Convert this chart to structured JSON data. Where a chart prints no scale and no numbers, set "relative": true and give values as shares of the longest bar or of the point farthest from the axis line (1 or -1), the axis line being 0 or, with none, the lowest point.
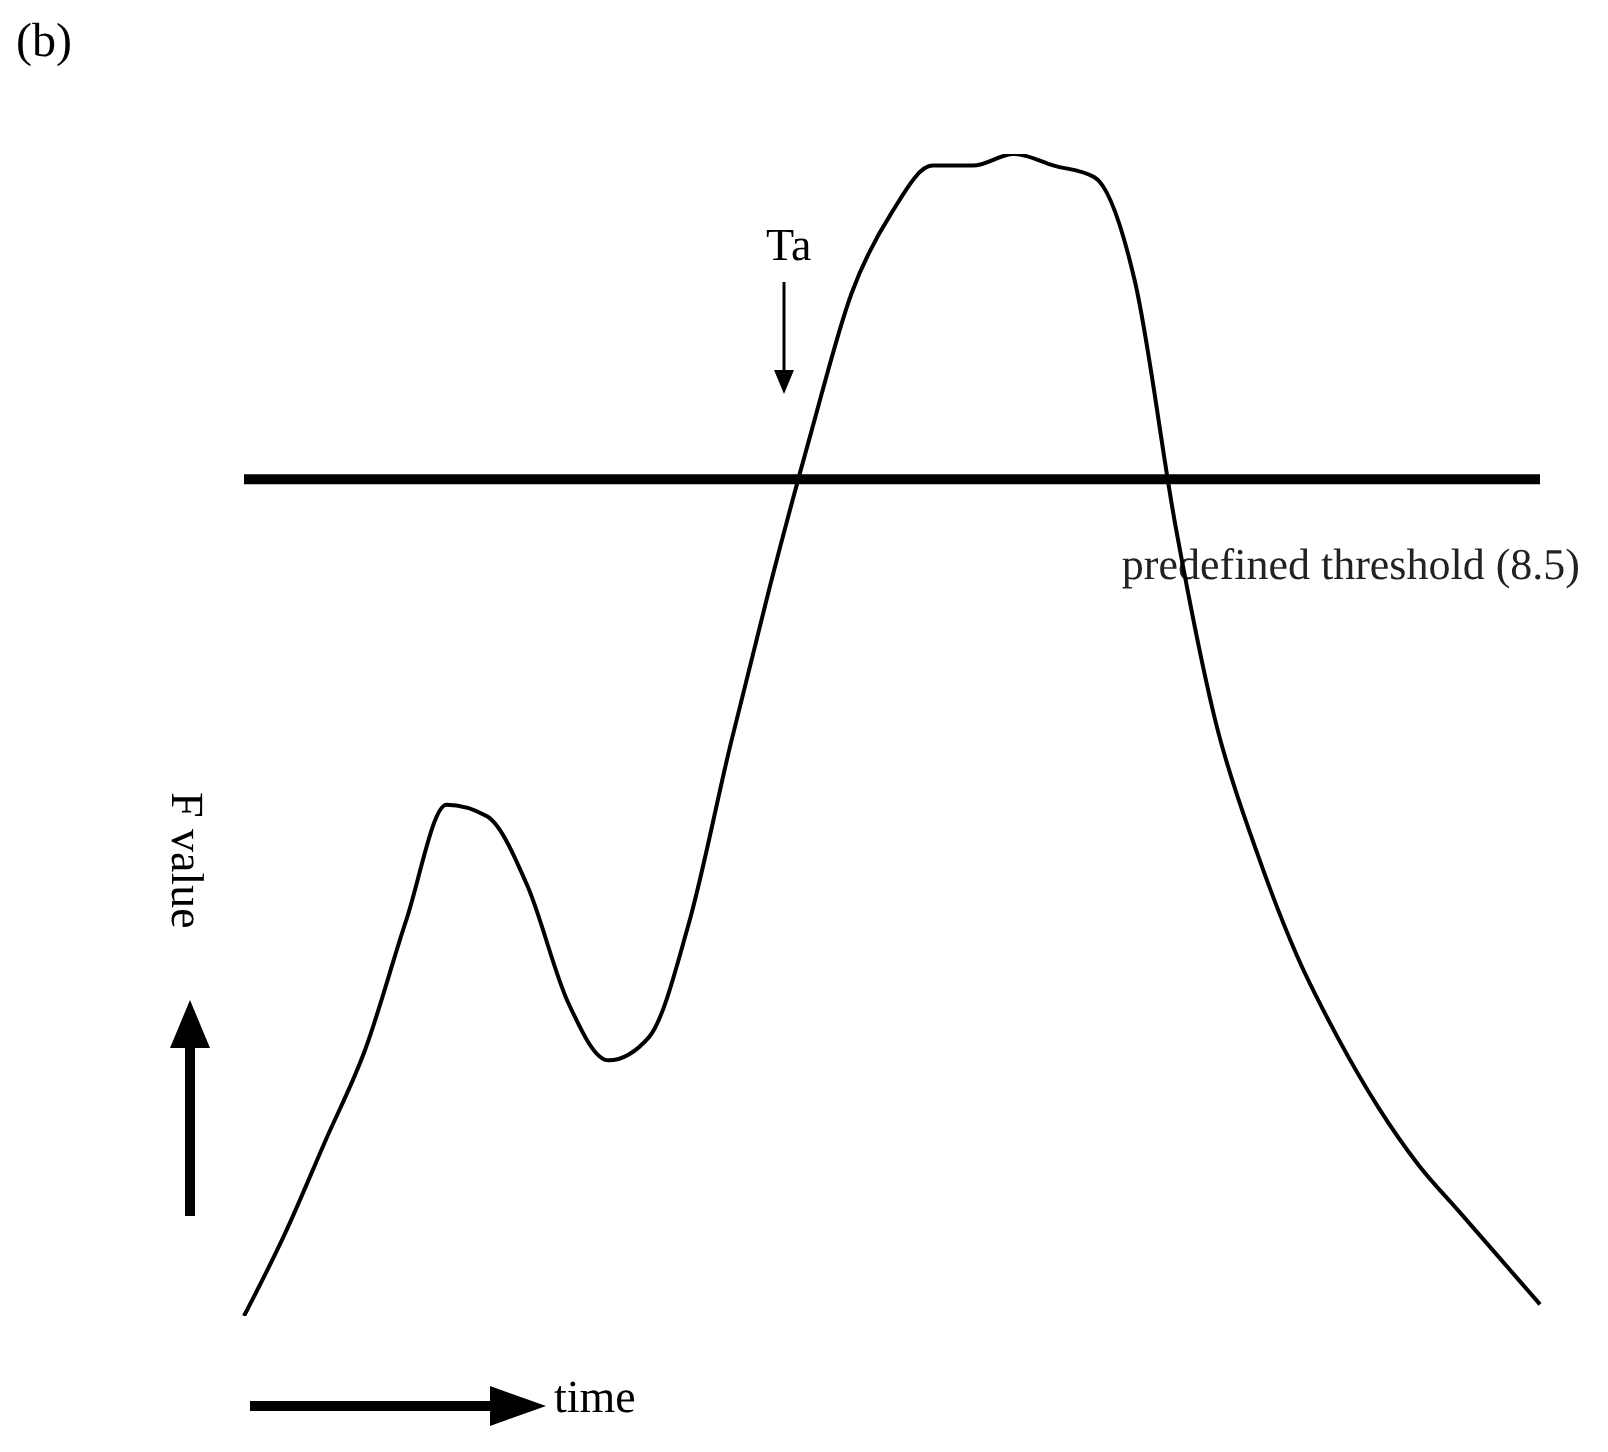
{
  "chart_data": {
    "type": "line",
    "title": "(b)",
    "xlabel": "time",
    "ylabel": "F value",
    "relative": true,
    "categories": [
      null,
      null,
      null,
      null,
      null,
      null,
      null,
      null,
      null,
      null,
      null,
      null,
      null,
      null,
      null,
      null,
      null,
      null,
      null,
      null,
      null,
      null,
      null,
      null,
      null,
      null,
      null,
      null,
      null,
      null,
      null,
      null,
      null
    ],
    "series": [
      {
        "color": "#000000",
        "values": [
          0,
          0.07,
          0.15,
          0.23,
          0.34,
          0.44,
          0.43,
          0.37,
          0.27,
          0.22,
          0.24,
          0.34,
          0.49,
          0.63,
          0.76,
          0.88,
          0.95,
          0.99,
          0.99,
          1,
          0.99,
          0.98,
          0.89,
          0.68,
          0.51,
          0.4,
          0.31,
          0.24,
          0.18,
          0.13,
          0.09,
          0.05,
          0.01
        ]
      }
    ],
    "ref_lines": [
      {
        "axis": "y",
        "value": 0.72,
        "label": "predefined threshold (8.5)",
        "color": "#000000"
      }
    ],
    "annotations": [
      "Ta"
    ]
  }
}
